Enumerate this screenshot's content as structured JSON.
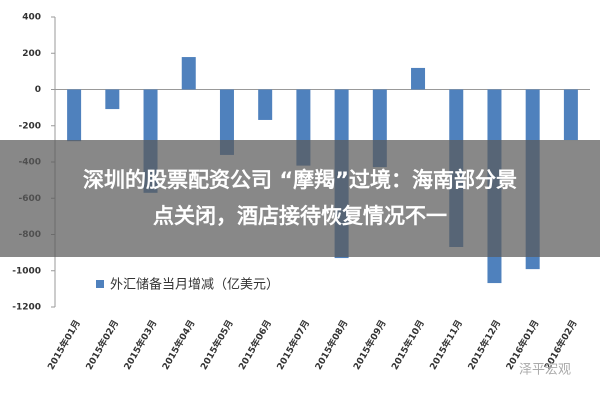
{
  "chart_data": {
    "type": "bar",
    "categories": [
      "2015年01月",
      "2015年02月",
      "2015年03月",
      "2015年04月",
      "2015年05月",
      "2015年06月",
      "2015年07月",
      "2015年08月",
      "2015年09月",
      "2015年10月",
      "2015年11月",
      "2015年12月",
      "2016年01月",
      "2016年02月"
    ],
    "series": [
      {
        "name": "外汇储备当月增减（亿美元）",
        "color": "#4f81bd",
        "values": [
          -285,
          -108,
          -570,
          179,
          -361,
          -168,
          -420,
          -930,
          -428,
          119,
          -869,
          -1068,
          -991,
          -279
        ]
      }
    ],
    "ylim": [
      -1200,
      400
    ],
    "yticks": [
      -1200,
      -1000,
      -800,
      -600,
      -400,
      -200,
      0,
      200,
      400
    ],
    "grid": false
  },
  "overlay": {
    "headline_lines": [
      "深圳的股票配资公司 “摩羯”过境：海南部分景",
      "点关闭，酒店接待恢复情况不一"
    ]
  },
  "watermark": "泽平宏观"
}
